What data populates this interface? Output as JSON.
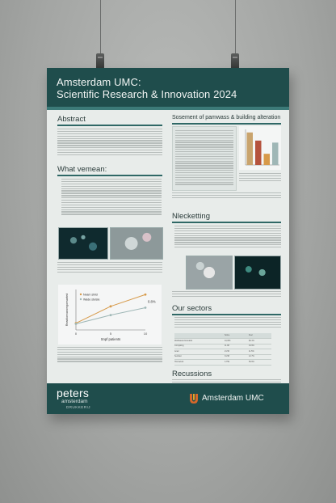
{
  "poster": {
    "title_line1": "Amsterdam UMC:",
    "title_line2": "Scientific Research & Innovation 2024",
    "sections": {
      "abstract": "Abstract",
      "what_we_mean": "What vemean:",
      "sosement": "Sosement of pamwass & building alteration",
      "nlecketting": "Nlecketting",
      "our_sectors": "Our sectors",
      "recussions": "Recussions"
    }
  },
  "chart_data": {
    "type": "line",
    "ylabel": "Reactionvaromgonsarted",
    "xlabel": "Snpf patients",
    "x": [
      0,
      5,
      10
    ],
    "xticklabels": [
      "0",
      "5",
      "10"
    ],
    "series": [
      {
        "name": "Nvam shild",
        "color": "#d79a4a",
        "values": [
          20,
          70,
          105
        ]
      },
      {
        "name": "Wade stelsle",
        "color": "#9fb7b6",
        "values": [
          18,
          44,
          66
        ]
      }
    ],
    "annotation": "0.8%",
    "ylim": [
      0,
      120
    ]
  },
  "bar_chart": {
    "type": "bar",
    "values": [
      3.2,
      2.4,
      1.1,
      2.2
    ],
    "colors": [
      "#c9a46d",
      "#b5533d",
      "#d79a4a",
      "#9fb7b6"
    ]
  },
  "sectors_table": {
    "headers": [
      "",
      "Some",
      "Fuel"
    ],
    "rows": [
      [
        "Wetblassts brandelts",
        "10,053",
        "$4.1%"
      ],
      [
        "Connjating",
        "11.98",
        "19.9%"
      ],
      [
        "Acad",
        "21.56",
        "11.5%"
      ],
      [
        "Sectlast",
        "31.58",
        "12.7%"
      ],
      [
        "Hm/Lazwit",
        "3.759",
        "56.6%"
      ]
    ]
  },
  "footer": {
    "peters": "peters",
    "peters_sub1": "amsterdam",
    "peters_sub2": "DRUKKERIJ",
    "umc_name": "Amsterdam UMC",
    "accent": "#1f4d4c",
    "logo_colors": [
      "#d7682a",
      "#e5a52a"
    ]
  }
}
